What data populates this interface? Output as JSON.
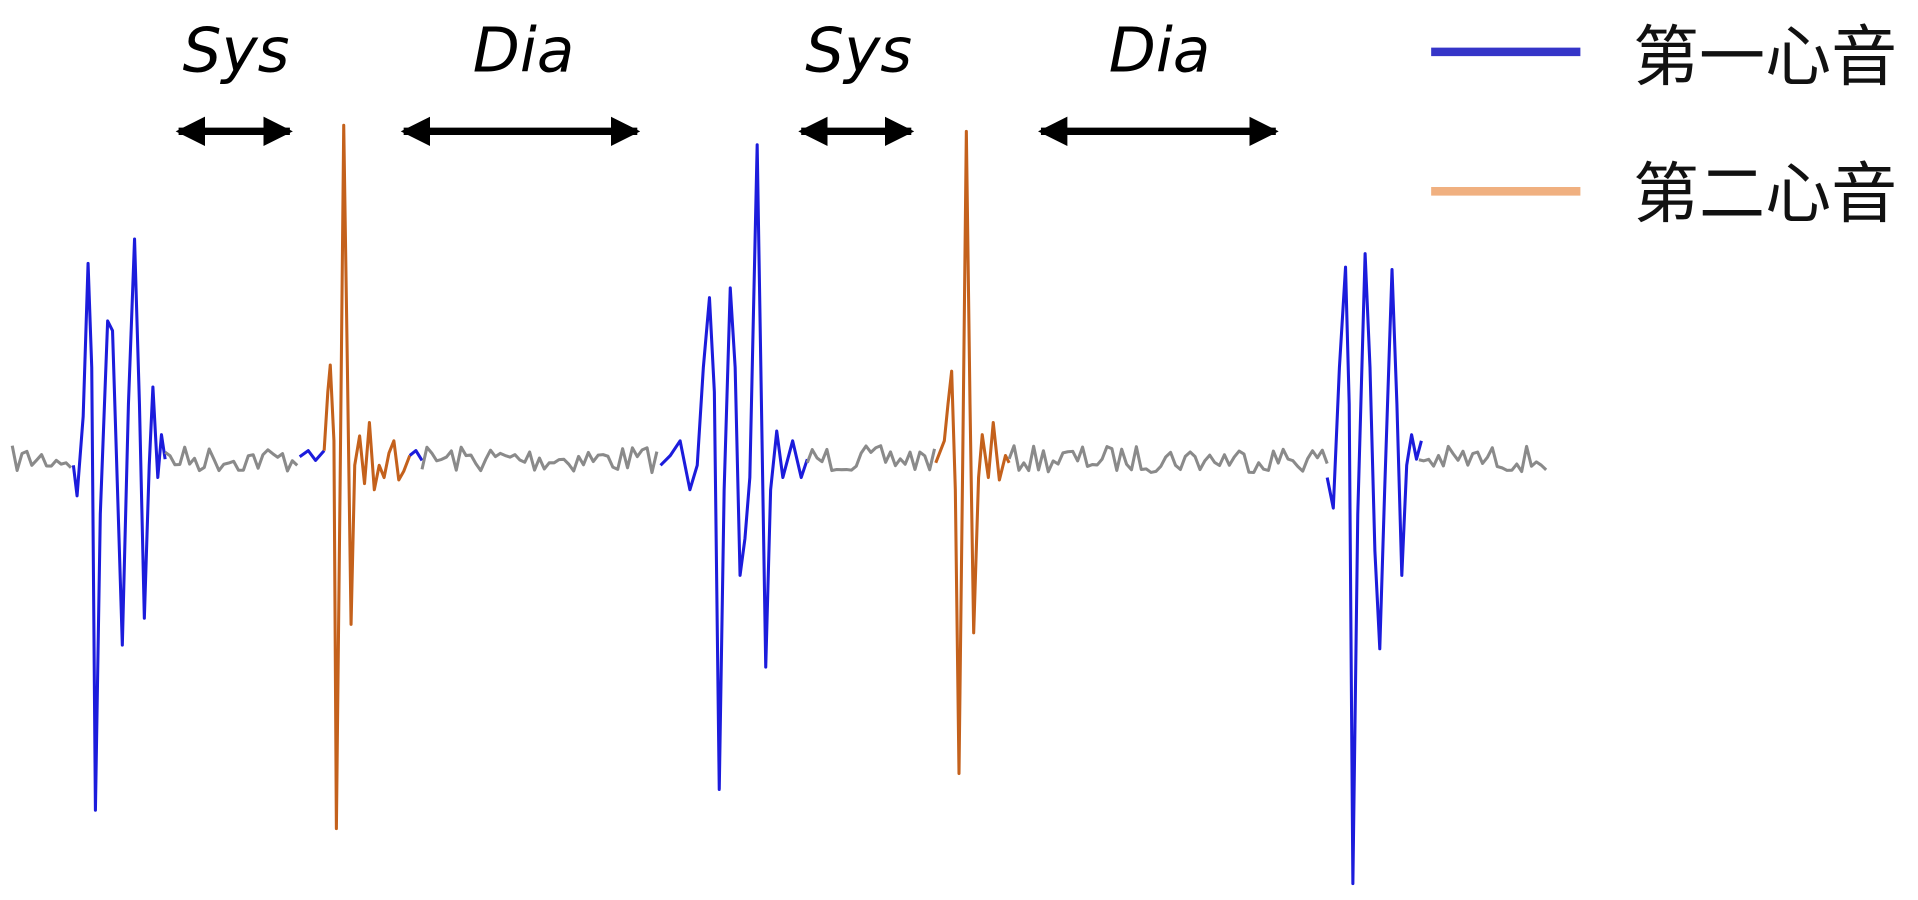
{
  "phases": [
    {
      "label": "Sys"
    },
    {
      "label": "Dia"
    },
    {
      "label": "Sys"
    },
    {
      "label": "Dia"
    }
  ],
  "legend": [
    {
      "label": "第一心音",
      "color": "#3535c8"
    },
    {
      "label": "第二心音",
      "color": "#f0b080"
    }
  ]
}
